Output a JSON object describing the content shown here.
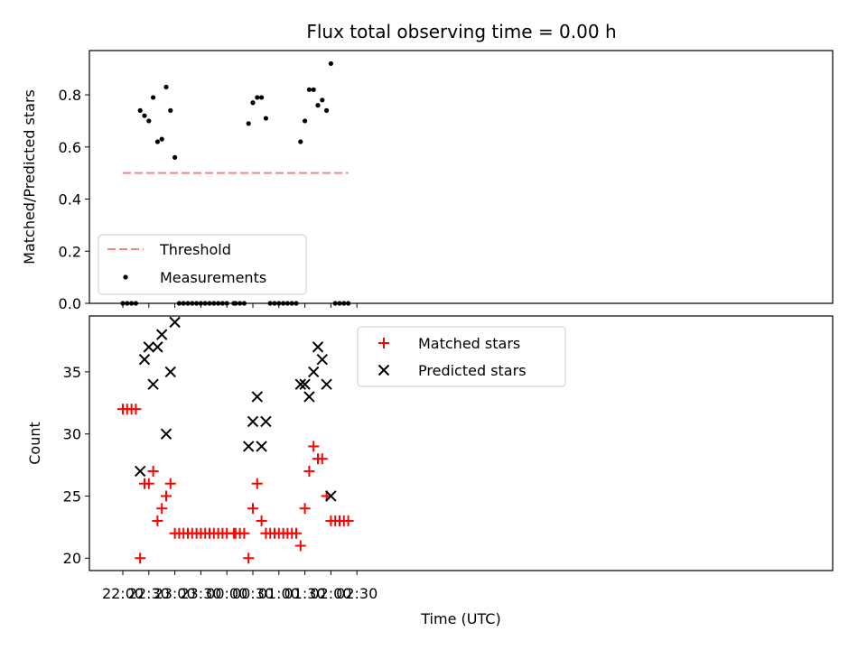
{
  "title": "Flux total observing time = 0.00 h",
  "chart_data": [
    {
      "type": "scatter",
      "ylabel": "Matched/Predicted stars",
      "xlabel": "",
      "ylim": [
        0,
        0.97
      ],
      "yticks": [
        "0.0",
        "0.2",
        "0.4",
        "0.6",
        "0.8"
      ],
      "grid": false,
      "legend_position": "lower-left",
      "threshold": {
        "name": "Threshold",
        "value": 0.5,
        "x_start": "22:00",
        "x_end": "02:20",
        "color": "#ff7f7f"
      },
      "series": [
        {
          "name": "Measurements",
          "color": "#000000",
          "points": [
            [
              "22:00",
              0
            ],
            [
              "22:05",
              0
            ],
            [
              "22:10",
              0
            ],
            [
              "22:15",
              0
            ],
            [
              "22:20",
              0.74
            ],
            [
              "22:25",
              0.72
            ],
            [
              "22:30",
              0.7
            ],
            [
              "22:35",
              0.79
            ],
            [
              "22:40",
              0.62
            ],
            [
              "22:45",
              0.63
            ],
            [
              "22:50",
              0.83
            ],
            [
              "22:55",
              0.74
            ],
            [
              "23:00",
              0.56
            ],
            [
              "23:05",
              0
            ],
            [
              "23:10",
              0
            ],
            [
              "23:15",
              0
            ],
            [
              "23:20",
              0
            ],
            [
              "23:25",
              0
            ],
            [
              "23:30",
              0
            ],
            [
              "23:35",
              0
            ],
            [
              "23:40",
              0
            ],
            [
              "23:45",
              0
            ],
            [
              "23:50",
              0
            ],
            [
              "23:55",
              0
            ],
            [
              "00:00",
              0
            ],
            [
              "00:08",
              0
            ],
            [
              "00:10",
              0
            ],
            [
              "00:15",
              0
            ],
            [
              "00:20",
              0
            ],
            [
              "00:25",
              0.69
            ],
            [
              "00:30",
              0.77
            ],
            [
              "00:35",
              0.79
            ],
            [
              "00:40",
              0.79
            ],
            [
              "00:45",
              0.71
            ],
            [
              "00:50",
              0
            ],
            [
              "00:55",
              0
            ],
            [
              "01:00",
              0
            ],
            [
              "01:05",
              0
            ],
            [
              "01:10",
              0
            ],
            [
              "01:15",
              0
            ],
            [
              "01:20",
              0
            ],
            [
              "01:25",
              0.62
            ],
            [
              "01:30",
              0.7
            ],
            [
              "01:35",
              0.82
            ],
            [
              "01:40",
              0.82
            ],
            [
              "01:45",
              0.76
            ],
            [
              "01:50",
              0.78
            ],
            [
              "01:55",
              0.74
            ],
            [
              "02:00",
              0.92
            ],
            [
              "02:05",
              0
            ],
            [
              "02:10",
              0
            ],
            [
              "02:15",
              0
            ],
            [
              "02:20",
              0
            ]
          ]
        }
      ]
    },
    {
      "type": "scatter",
      "ylabel": "Count",
      "xlabel": "Time (UTC)",
      "ylim": [
        19,
        39.5
      ],
      "yticks": [
        "20",
        "25",
        "30",
        "35"
      ],
      "xticks": [
        "22:00",
        "22:30",
        "23:00",
        "23:30",
        "00:00",
        "00:30",
        "01:00",
        "01:30",
        "02:00",
        "02:30"
      ],
      "x_tick_offsets_min": [
        0,
        30,
        60,
        90,
        120,
        150,
        180,
        210,
        240,
        270
      ],
      "grid": false,
      "legend_position": "upper-center",
      "series": [
        {
          "name": "Matched stars",
          "color": "#ff0000",
          "marker": "+",
          "points": [
            [
              "22:00",
              32
            ],
            [
              "22:05",
              32
            ],
            [
              "22:10",
              32
            ],
            [
              "22:15",
              32
            ],
            [
              "22:20",
              20
            ],
            [
              "22:25",
              26
            ],
            [
              "22:30",
              26
            ],
            [
              "22:35",
              27
            ],
            [
              "22:40",
              23
            ],
            [
              "22:45",
              24
            ],
            [
              "22:50",
              25
            ],
            [
              "22:55",
              26
            ],
            [
              "23:00",
              22
            ],
            [
              "23:05",
              22
            ],
            [
              "23:10",
              22
            ],
            [
              "23:15",
              22
            ],
            [
              "23:20",
              22
            ],
            [
              "23:25",
              22
            ],
            [
              "23:30",
              22
            ],
            [
              "23:35",
              22
            ],
            [
              "23:40",
              22
            ],
            [
              "23:45",
              22
            ],
            [
              "23:50",
              22
            ],
            [
              "23:55",
              22
            ],
            [
              "00:00",
              22
            ],
            [
              "00:08",
              22
            ],
            [
              "00:10",
              22
            ],
            [
              "00:15",
              22
            ],
            [
              "00:20",
              22
            ],
            [
              "00:25",
              20
            ],
            [
              "00:30",
              24
            ],
            [
              "00:35",
              26
            ],
            [
              "00:40",
              23
            ],
            [
              "00:45",
              22
            ],
            [
              "00:50",
              22
            ],
            [
              "00:55",
              22
            ],
            [
              "01:00",
              22
            ],
            [
              "01:05",
              22
            ],
            [
              "01:10",
              22
            ],
            [
              "01:15",
              22
            ],
            [
              "01:20",
              22
            ],
            [
              "01:25",
              21
            ],
            [
              "01:30",
              24
            ],
            [
              "01:35",
              27
            ],
            [
              "01:40",
              29
            ],
            [
              "01:45",
              28
            ],
            [
              "01:50",
              28
            ],
            [
              "01:55",
              25
            ],
            [
              "02:00",
              23
            ],
            [
              "02:05",
              23
            ],
            [
              "02:10",
              23
            ],
            [
              "02:15",
              23
            ],
            [
              "02:20",
              23
            ]
          ]
        },
        {
          "name": "Predicted stars",
          "color": "#000000",
          "marker": "x",
          "points": [
            [
              "22:20",
              27
            ],
            [
              "22:25",
              36
            ],
            [
              "22:30",
              37
            ],
            [
              "22:35",
              34
            ],
            [
              "22:40",
              37
            ],
            [
              "22:45",
              38
            ],
            [
              "22:50",
              30
            ],
            [
              "22:55",
              35
            ],
            [
              "23:00",
              39
            ],
            [
              "00:25",
              29
            ],
            [
              "00:30",
              31
            ],
            [
              "00:35",
              33
            ],
            [
              "00:40",
              29
            ],
            [
              "00:45",
              31
            ],
            [
              "01:25",
              34
            ],
            [
              "01:30",
              34
            ],
            [
              "01:35",
              33
            ],
            [
              "01:40",
              35
            ],
            [
              "01:45",
              37
            ],
            [
              "01:50",
              36
            ],
            [
              "01:55",
              34
            ],
            [
              "02:00",
              25
            ]
          ]
        }
      ]
    }
  ]
}
